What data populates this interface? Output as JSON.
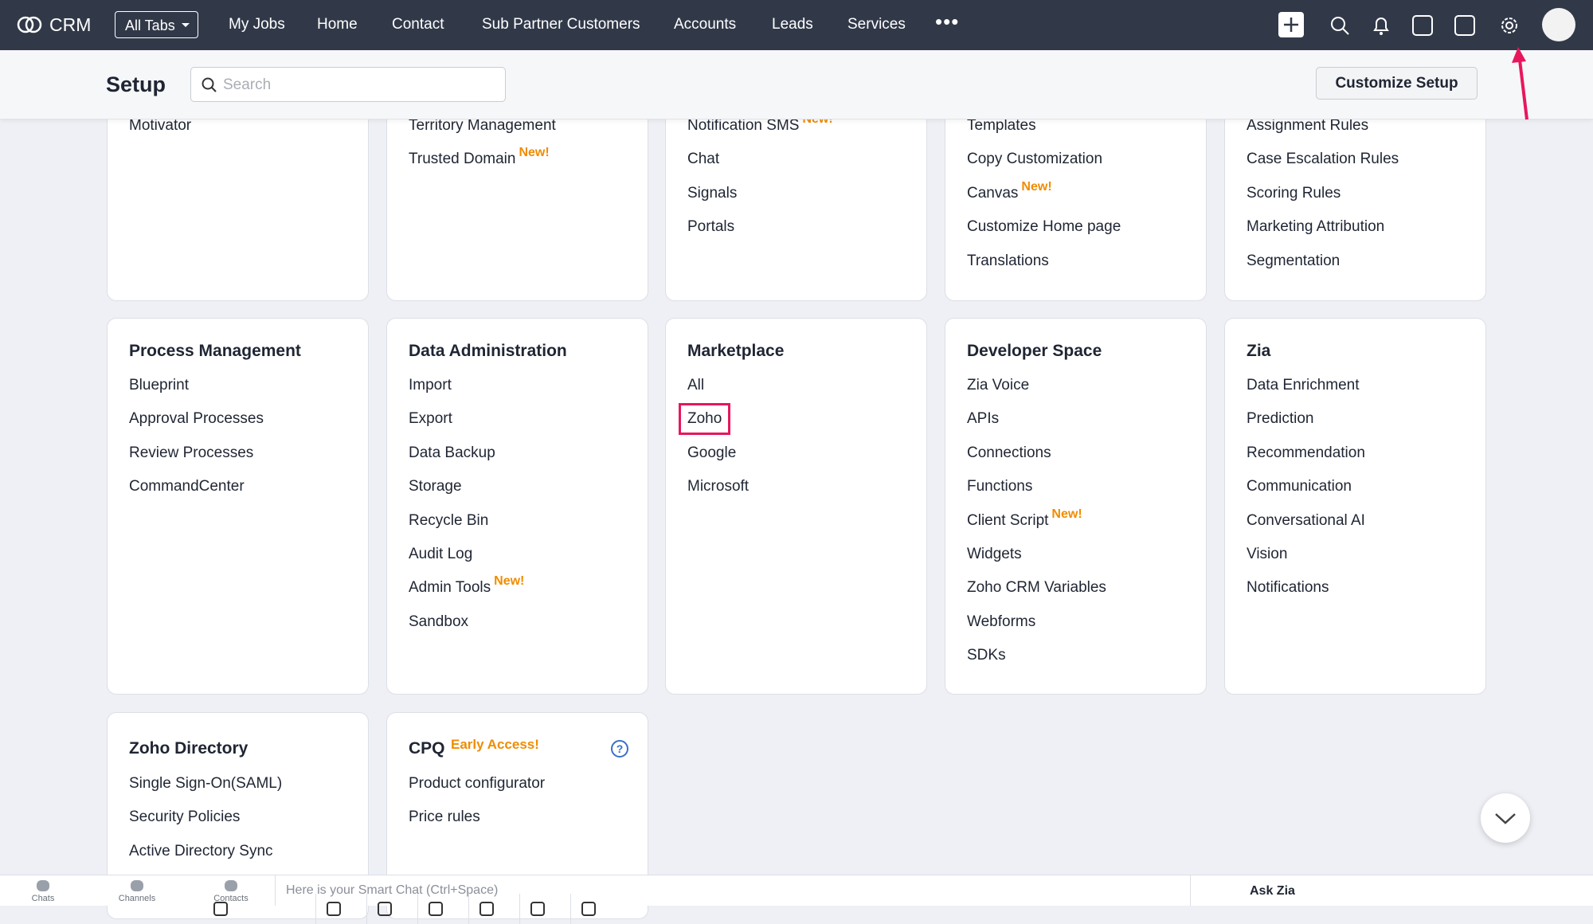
{
  "nav": {
    "logo": "CRM",
    "all_tabs": "All Tabs",
    "tabs": [
      "My Jobs",
      "Home",
      "Contact",
      "Sub Partner Customers",
      "Accounts",
      "Leads",
      "Services"
    ]
  },
  "setup": {
    "title": "Setup",
    "search_placeholder": "Search",
    "button": "Customize Setup"
  },
  "rows": [
    [
      {
        "items": [
          "Motivator"
        ]
      },
      {
        "items": [
          "Territory Management",
          {
            "text": "Trusted Domain",
            "badge": "New!"
          }
        ]
      },
      {
        "items": [
          {
            "text": "Notification SMS",
            "badge": "New!"
          },
          "Chat",
          "Signals",
          "Portals"
        ]
      },
      {
        "items": [
          "Templates",
          "Copy Customization",
          {
            "text": "Canvas",
            "badge": "New!"
          },
          "Customize Home page",
          "Translations"
        ]
      },
      {
        "items": [
          "Assignment Rules",
          "Case Escalation Rules",
          "Scoring Rules",
          "Marketing Attribution",
          "Segmentation"
        ]
      }
    ],
    [
      {
        "title": "Process Management",
        "items": [
          "Blueprint",
          "Approval Processes",
          "Review Processes",
          "CommandCenter"
        ]
      },
      {
        "title": "Data Administration",
        "items": [
          "Import",
          "Export",
          "Data Backup",
          "Storage",
          "Recycle Bin",
          "Audit Log",
          {
            "text": "Admin Tools",
            "badge": "New!"
          },
          "Sandbox"
        ]
      },
      {
        "title": "Marketplace",
        "items": [
          "All",
          {
            "text": "Zoho",
            "highlighted": true
          },
          "Google",
          "Microsoft"
        ]
      },
      {
        "title": "Developer Space",
        "items": [
          "Zia Voice",
          "APIs",
          "Connections",
          "Functions",
          {
            "text": "Client Script",
            "badge": "New!"
          },
          "Widgets",
          "Zoho CRM Variables",
          "Webforms",
          "SDKs"
        ]
      },
      {
        "title": "Zia",
        "items": [
          "Data Enrichment",
          "Prediction",
          "Recommendation",
          "Communication",
          "Conversational AI",
          "Vision",
          "Notifications"
        ]
      }
    ],
    [
      {
        "title": "Zoho Directory",
        "items": [
          "Single Sign-On(SAML)",
          "Security Policies",
          "Active Directory Sync"
        ]
      },
      {
        "title": "CPQ",
        "title_badge": "Early Access!",
        "items": [
          "Product configurator",
          "Price rules"
        ]
      }
    ]
  ],
  "bottom": {
    "tabs": [
      "Chats",
      "Channels",
      "Contacts"
    ],
    "smart_chat": "Here is your Smart Chat (Ctrl+Space)",
    "ask_zia": "Ask Zia"
  }
}
